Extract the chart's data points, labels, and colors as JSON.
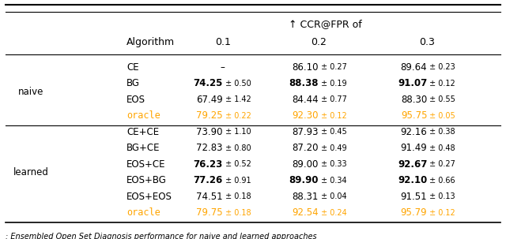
{
  "title": "↑ CCR@FPR of",
  "col_headers": [
    "Algorithm",
    "0.1",
    "0.2",
    "0.3"
  ],
  "group_labels": [
    "naive",
    "learned"
  ],
  "rows": [
    {
      "group": "naive",
      "algo": "CE",
      "oracle": false,
      "c01": "–",
      "c02": "86.10 ± 0.27",
      "c03": "89.64 ± 0.23",
      "bold01": false,
      "bold02": false,
      "bold03": false
    },
    {
      "group": "naive",
      "algo": "BG",
      "oracle": false,
      "c01": "74.25 ± 0.50",
      "c02": "88.38 ± 0.19",
      "c03": "91.07 ± 0.12",
      "bold01": true,
      "bold02": true,
      "bold03": true
    },
    {
      "group": "naive",
      "algo": "EOS",
      "oracle": false,
      "c01": "67.49 ± 1.42",
      "c02": "84.44 ± 0.77",
      "c03": "88.30 ± 0.55",
      "bold01": false,
      "bold02": false,
      "bold03": false
    },
    {
      "group": "naive",
      "algo": "oracle",
      "oracle": true,
      "c01": "79.25 ± 0.22",
      "c02": "92.30 ± 0.12",
      "c03": "95.75 ± 0.05",
      "bold01": false,
      "bold02": false,
      "bold03": false
    },
    {
      "group": "learned",
      "algo": "CE+CE",
      "oracle": false,
      "c01": "73.90 ± 1.10",
      "c02": "87.93 ± 0.45",
      "c03": "92.16 ± 0.38",
      "bold01": false,
      "bold02": false,
      "bold03": false
    },
    {
      "group": "learned",
      "algo": "BG+CE",
      "oracle": false,
      "c01": "72.83 ± 0.80",
      "c02": "87.20 ± 0.49",
      "c03": "91.49 ± 0.48",
      "bold01": false,
      "bold02": false,
      "bold03": false
    },
    {
      "group": "learned",
      "algo": "EOS+CE",
      "oracle": false,
      "c01": "76.23 ± 0.52",
      "c02": "89.00 ± 0.33",
      "c03": "92.67 ± 0.27",
      "bold01": true,
      "bold02": false,
      "bold03": true
    },
    {
      "group": "learned",
      "algo": "EOS+BG",
      "oracle": false,
      "c01": "77.26 ± 0.91",
      "c02": "89.90 ± 0.34",
      "c03": "92.10 ± 0.66",
      "bold01": true,
      "bold02": true,
      "bold03": true
    },
    {
      "group": "learned",
      "algo": "EOS+EOS",
      "oracle": false,
      "c01": "74.51 ± 0.18",
      "c02": "88.31 ± 0.04",
      "c03": "91.51 ± 0.13",
      "bold01": false,
      "bold02": false,
      "bold03": false
    },
    {
      "group": "learned",
      "algo": "oracle",
      "oracle": true,
      "c01": "79.75 ± 0.18",
      "c02": "92.54 ± 0.24",
      "c03": "95.79 ± 0.12",
      "bold01": false,
      "bold02": false,
      "bold03": false
    }
  ],
  "caption": ": Ensembled Open Set Diagnosis performance for naive and learned approaches",
  "oracle_color": "#FFA500",
  "normal_color": "#000000",
  "bg_color": "#FFFFFF",
  "fig_width": 6.4,
  "fig_height": 3.03,
  "dpi": 100
}
